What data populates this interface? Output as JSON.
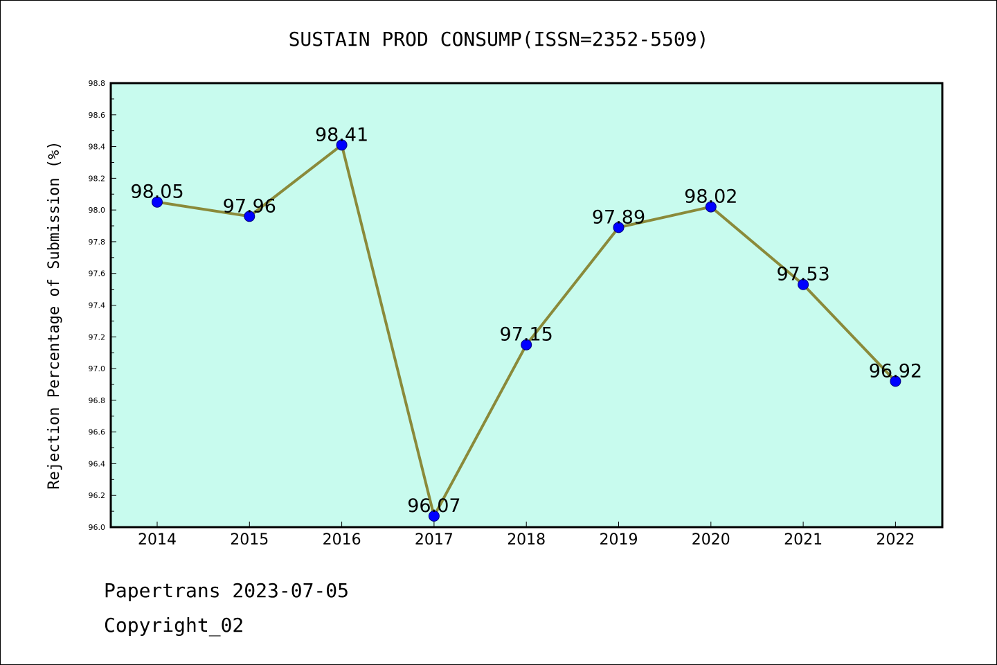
{
  "colors": {
    "plot_bg": "#c8fbee",
    "line": "#8a8a3a",
    "marker": "#0000ff",
    "axis": "#000000"
  },
  "chart_data": {
    "type": "line",
    "title": "SUSTAIN PROD CONSUMP(ISSN=2352-5509)",
    "xlabel": "",
    "ylabel": "Rejection Percentage of Submission (%)",
    "categories": [
      "2014",
      "2015",
      "2016",
      "2017",
      "2018",
      "2019",
      "2020",
      "2021",
      "2022"
    ],
    "series": [
      {
        "values": [
          98.05,
          97.96,
          98.41,
          96.07,
          97.15,
          97.89,
          98.02,
          97.53,
          96.92
        ]
      }
    ],
    "data_labels": [
      "98.05",
      "97.96",
      "98.41",
      "96.07",
      "97.15",
      "97.89",
      "98.02",
      "97.53",
      "96.92"
    ],
    "ylim": [
      96.0,
      98.8
    ],
    "yticks": [
      "96.0",
      "96.2",
      "96.4",
      "96.6",
      "96.8",
      "97.0",
      "97.2",
      "97.4",
      "97.6",
      "97.8",
      "98.0",
      "98.2",
      "98.4",
      "98.6",
      "98.8"
    ],
    "grid": false,
    "legend": "none"
  },
  "footer": {
    "line1": "Papertrans 2023-07-05",
    "line2": "Copyright_02"
  }
}
